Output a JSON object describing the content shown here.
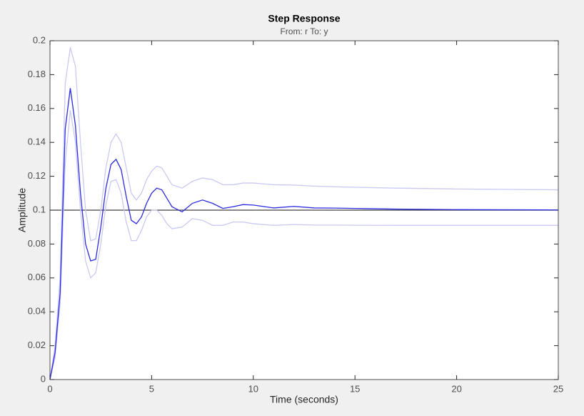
{
  "chart_data": {
    "type": "line",
    "title": "Step Response",
    "subtitle": "From: r  To: y",
    "x_label": "Time (seconds)",
    "y_label": "Amplitude",
    "x": [
      0,
      0.25,
      0.5,
      0.75,
      1,
      1.25,
      1.5,
      1.75,
      2,
      2.25,
      2.5,
      2.75,
      3,
      3.25,
      3.5,
      3.75,
      4,
      4.25,
      4.5,
      4.75,
      5,
      5.25,
      5.5,
      5.75,
      6,
      6.5,
      7,
      7.5,
      8,
      8.5,
      9,
      9.5,
      10,
      11,
      12,
      13,
      14,
      15,
      17,
      20,
      25
    ],
    "series": [
      {
        "color": "#c9c9f4",
        "values": [
          0,
          0.02,
          0.06,
          0.175,
          0.196,
          0.185,
          0.14,
          0.1,
          0.082,
          0.083,
          0.1,
          0.125,
          0.14,
          0.145,
          0.14,
          0.125,
          0.11,
          0.106,
          0.11,
          0.118,
          0.123,
          0.126,
          0.125,
          0.12,
          0.115,
          0.113,
          0.117,
          0.119,
          0.118,
          0.115,
          0.115,
          0.116,
          0.116,
          0.115,
          0.1148,
          0.1142,
          0.1138,
          0.1135,
          0.113,
          0.1125,
          0.112
        ]
      },
      {
        "color": "#c9c9f4",
        "values": [
          0,
          0.013,
          0.045,
          0.128,
          0.159,
          0.14,
          0.1,
          0.07,
          0.06,
          0.063,
          0.08,
          0.103,
          0.117,
          0.118,
          0.11,
          0.093,
          0.082,
          0.082,
          0.088,
          0.096,
          0.1,
          0.1,
          0.097,
          0.092,
          0.089,
          0.09,
          0.095,
          0.094,
          0.091,
          0.091,
          0.093,
          0.093,
          0.092,
          0.091,
          0.0915,
          0.0912,
          0.0912,
          0.0911,
          0.091,
          0.091,
          0.091
        ]
      },
      {
        "color": "#2b2be0",
        "values": [
          0,
          0.016,
          0.051,
          0.148,
          0.172,
          0.15,
          0.11,
          0.08,
          0.07,
          0.071,
          0.09,
          0.113,
          0.127,
          0.13,
          0.124,
          0.108,
          0.094,
          0.092,
          0.096,
          0.104,
          0.11,
          0.113,
          0.112,
          0.107,
          0.102,
          0.099,
          0.104,
          0.106,
          0.104,
          0.101,
          0.102,
          0.1033,
          0.103,
          0.1013,
          0.1022,
          0.1013,
          0.1012,
          0.101,
          0.1006,
          0.1003,
          0.1001
        ]
      }
    ],
    "reference_line": 0.1,
    "reference_color": "#404040",
    "xlim": [
      0,
      25
    ],
    "xticks": [
      0,
      5,
      10,
      15,
      20,
      25
    ],
    "ylim": [
      0,
      0.2
    ],
    "yticks": [
      0,
      0.02,
      0.04,
      0.06,
      0.08,
      0.1,
      0.12,
      0.14,
      0.16,
      0.18,
      0.2
    ],
    "grid": false
  }
}
